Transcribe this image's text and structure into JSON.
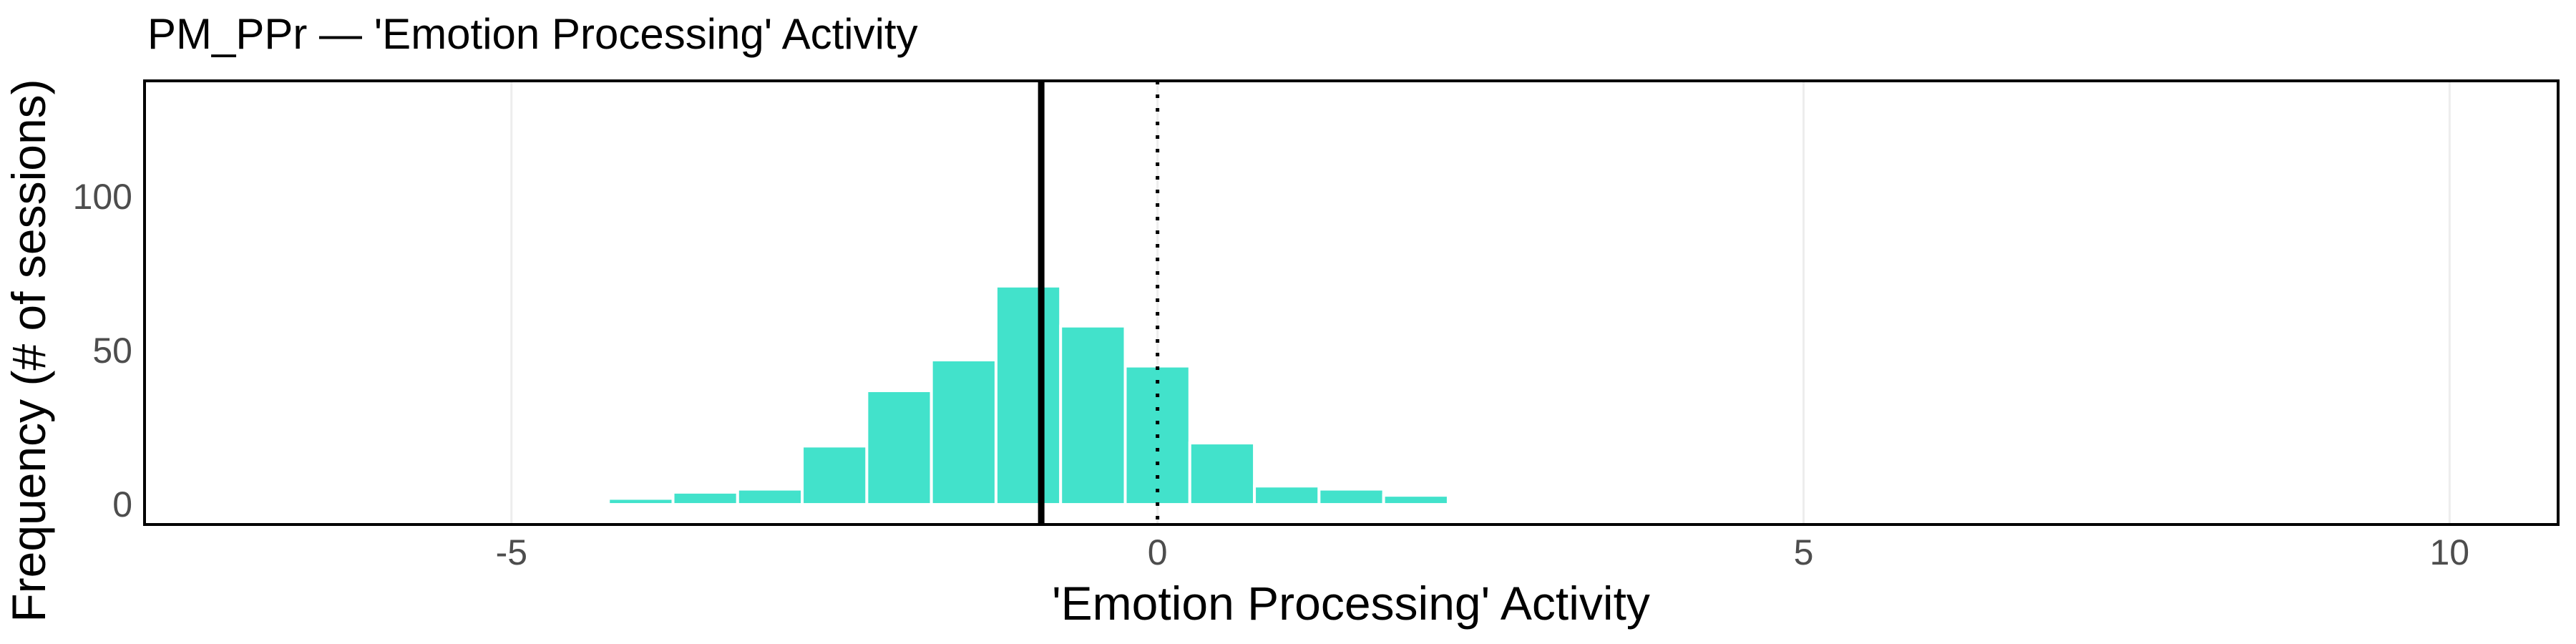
{
  "figure": {
    "background": "#ffffff"
  },
  "chart_data": {
    "type": "bar",
    "subtype": "histogram",
    "title": "PM_PPr — 'Emotion Processing' Activity",
    "xlabel": "'Emotion Processing' Activity",
    "ylabel": "Frequency (# of sessions)",
    "bin_width": 0.5,
    "bin_centers": [
      -4.0,
      -3.5,
      -3.0,
      -2.5,
      -2.0,
      -1.5,
      -1.0,
      -0.5,
      0.0,
      0.5,
      1.0,
      1.5,
      2.0
    ],
    "counts": [
      2,
      4,
      5,
      19,
      37,
      47,
      71,
      58,
      45,
      20,
      6,
      5,
      3
    ],
    "x_ticks": [
      {
        "value": -5,
        "label": "-5"
      },
      {
        "value": 0,
        "label": "0"
      },
      {
        "value": 5,
        "label": "5"
      },
      {
        "value": 10,
        "label": "10"
      }
    ],
    "y_ticks": [
      {
        "value": 0,
        "label": "0"
      },
      {
        "value": 50,
        "label": "50"
      },
      {
        "value": 100,
        "label": "100"
      }
    ],
    "xlim": [
      -7.84,
      10.84
    ],
    "ylim": [
      -6.5,
      137.7
    ],
    "grid": "vertical-major-only",
    "legend": "none",
    "reference_lines": [
      {
        "x": -0.9,
        "style": "solid",
        "width": 9,
        "color": "#000000",
        "name": "mean-line"
      },
      {
        "x": 0.0,
        "style": "dotted",
        "width": 5,
        "color": "#000000",
        "name": "zero-line"
      }
    ],
    "colors": {
      "bar_fill": "#42E2CB",
      "bar_stroke": "#ffffff",
      "gridline": "#ededed",
      "panel_border": "#000000",
      "tick_label": "#4d4d4d",
      "text": "#000000"
    }
  }
}
